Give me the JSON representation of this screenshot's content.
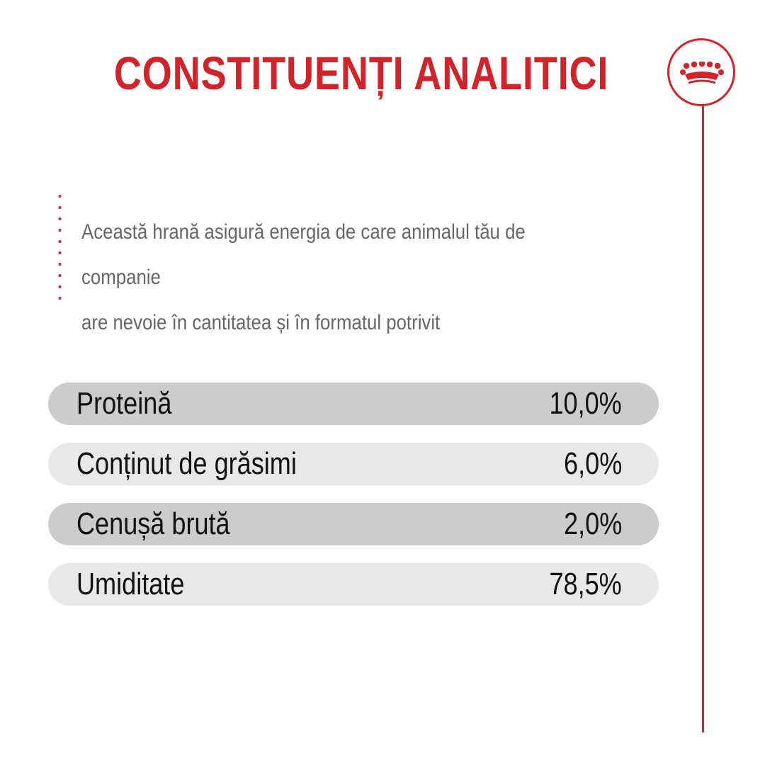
{
  "title": "CONSTITUENȚI ANALITICI",
  "intro": {
    "line1": "Această hrană asigură energia de care animalul tău de companie",
    "line2": "are nevoie în cantitatea și în formatul potrivit"
  },
  "constituents": [
    {
      "label": "Proteină",
      "value": "10,0%"
    },
    {
      "label": "Conținut de grăsimi",
      "value": "6,0%"
    },
    {
      "label": "Cenușă brută",
      "value": "2,0%"
    },
    {
      "label": "Umiditate",
      "value": "78,5%"
    }
  ],
  "colors": {
    "accent": "#d2232a",
    "row_dark": "#cccccc",
    "row_light": "#e8e8e8",
    "body_text": "#666666"
  },
  "icons": {
    "brand": "crown-icon"
  }
}
